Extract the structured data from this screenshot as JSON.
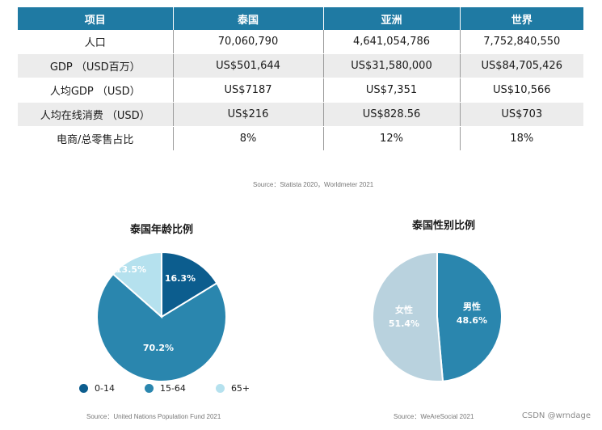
{
  "table": {
    "headers": [
      "项目",
      "泰国",
      "亚洲",
      "世界"
    ],
    "rows": [
      [
        "人口",
        "70,060,790",
        "4,641,054,786",
        "7,752,840,550"
      ],
      [
        "GDP （USD百万）",
        "US$501,644",
        "US$31,580,000",
        "US$84,705,426"
      ],
      [
        "人均GDP （USD）",
        "US$7187",
        "US$7,351",
        "US$10,566"
      ],
      [
        "人均在线消费 （USD）",
        "US$216",
        "US$828.56",
        "US$703"
      ],
      [
        "电商/总零售占比",
        "8%",
        "12%",
        "18%"
      ]
    ],
    "source": "Source：Statista 2020，Worldmeter 2021"
  },
  "chart_data": [
    {
      "type": "pie",
      "title": "泰国年龄比例",
      "categories": [
        "0-14",
        "15-64",
        "65+"
      ],
      "values": [
        16.3,
        70.2,
        13.5
      ],
      "labels": [
        "16.3%",
        "70.2%",
        "13.5%"
      ],
      "colors": [
        "#0c5d8e",
        "#2a86ae",
        "#b5e1ee"
      ],
      "label_colors": [
        "#ffffff",
        "#ffffff",
        "#ffffff"
      ],
      "legend": "bottom",
      "source": "Source：United Nations Population Fund 2021"
    },
    {
      "type": "pie",
      "title": "泰国性别比例",
      "categories": [
        "男性",
        "女性"
      ],
      "values": [
        48.6,
        51.4
      ],
      "labels": [
        "男性\n48.6%",
        "女性\n51.4%"
      ],
      "colors": [
        "#2a86ae",
        "#b9d2de"
      ],
      "label_colors": [
        "#ffffff",
        "#ffffff"
      ],
      "source": "Source：WeAreSocial 2021"
    }
  ],
  "watermark": "CSDN @wrndage"
}
